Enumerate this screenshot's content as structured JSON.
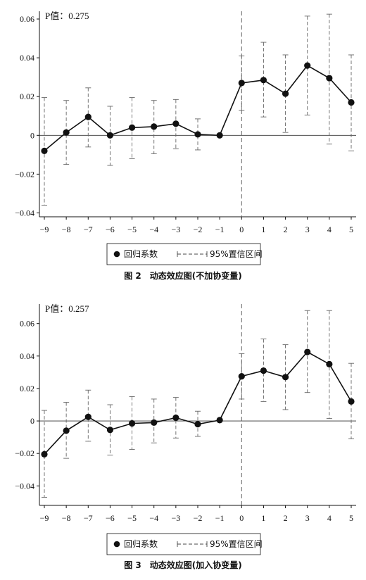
{
  "chart_data": [
    {
      "type": "line",
      "title": "",
      "caption": "图 2　动态效应图(不加协变量)",
      "annotation": "P值：0.275",
      "xlabel": "",
      "ylabel": "",
      "x": [
        -9,
        -8,
        -7,
        -6,
        -5,
        -4,
        -3,
        -2,
        -1,
        0,
        1,
        2,
        3,
        4,
        5
      ],
      "xlim": [
        -9,
        5
      ],
      "ylim": [
        -0.042,
        0.064
      ],
      "yticks": [
        -0.04,
        -0.02,
        0,
        0.02,
        0.04,
        0.06
      ],
      "ytick_labels": [
        "−0.04",
        "−0.02",
        "0",
        "0.02",
        "0.04",
        "0.06"
      ],
      "xtick_labels": [
        "−9",
        "−8",
        "−7",
        "−6",
        "−5",
        "−4",
        "−3",
        "−2",
        "−1",
        "0",
        "1",
        "2",
        "3",
        "4",
        "5"
      ],
      "reference_vline_x": 0,
      "reference_hline_y": 0,
      "grid": false,
      "legend_position": "bottom",
      "series": [
        {
          "name": "回归系数",
          "values": [
            -0.008,
            0.0015,
            0.0095,
            0.0,
            0.004,
            0.0045,
            0.006,
            0.0005,
            0.0,
            0.027,
            0.0285,
            0.0215,
            0.036,
            0.0295,
            0.017
          ],
          "lower": [
            -0.036,
            -0.015,
            -0.006,
            -0.0155,
            -0.012,
            -0.0095,
            -0.007,
            -0.0075,
            0.0,
            0.013,
            0.0095,
            0.0015,
            0.0105,
            -0.0045,
            -0.008
          ],
          "upper": [
            0.0195,
            0.018,
            0.0245,
            0.015,
            0.0195,
            0.018,
            0.0185,
            0.0085,
            0.0,
            0.041,
            0.048,
            0.0415,
            0.0615,
            0.0625,
            0.0415
          ]
        }
      ],
      "legend": {
        "coef_label": "回归系数",
        "ci_label": "95%置信区间"
      }
    },
    {
      "type": "line",
      "title": "",
      "caption": "图 3　动态效应图(加入协变量)",
      "annotation": "P值：0.257",
      "xlabel": "",
      "ylabel": "",
      "x": [
        -9,
        -8,
        -7,
        -6,
        -5,
        -4,
        -3,
        -2,
        -1,
        0,
        1,
        2,
        3,
        4,
        5
      ],
      "xlim": [
        -9,
        5
      ],
      "ylim": [
        -0.052,
        0.072
      ],
      "yticks": [
        -0.04,
        -0.02,
        0,
        0.02,
        0.04,
        0.06
      ],
      "ytick_labels": [
        "−0.04",
        "−0.02",
        "0",
        "0.02",
        "0.04",
        "0.06"
      ],
      "xtick_labels": [
        "−9",
        "−8",
        "−7",
        "−6",
        "−5",
        "−4",
        "−3",
        "−2",
        "−1",
        "0",
        "1",
        "2",
        "3",
        "4",
        "5"
      ],
      "reference_vline_x": 0,
      "reference_hline_y": 0,
      "grid": false,
      "legend_position": "bottom",
      "series": [
        {
          "name": "回归系数",
          "values": [
            -0.0205,
            -0.006,
            0.0025,
            -0.0055,
            -0.0015,
            -0.001,
            0.002,
            -0.002,
            0.0005,
            0.0275,
            0.031,
            0.027,
            0.0425,
            0.035,
            0.012
          ],
          "lower": [
            -0.047,
            -0.023,
            -0.0125,
            -0.021,
            -0.0175,
            -0.0135,
            -0.0105,
            -0.0095,
            0.0005,
            0.0135,
            0.012,
            0.007,
            0.0175,
            0.0015,
            -0.011
          ],
          "upper": [
            0.0065,
            0.0115,
            0.019,
            0.01,
            0.015,
            0.0135,
            0.0145,
            0.006,
            0.0005,
            0.0415,
            0.0505,
            0.047,
            0.068,
            0.068,
            0.0355
          ]
        }
      ],
      "legend": {
        "coef_label": "回归系数",
        "ci_label": "95%置信区间"
      }
    }
  ]
}
